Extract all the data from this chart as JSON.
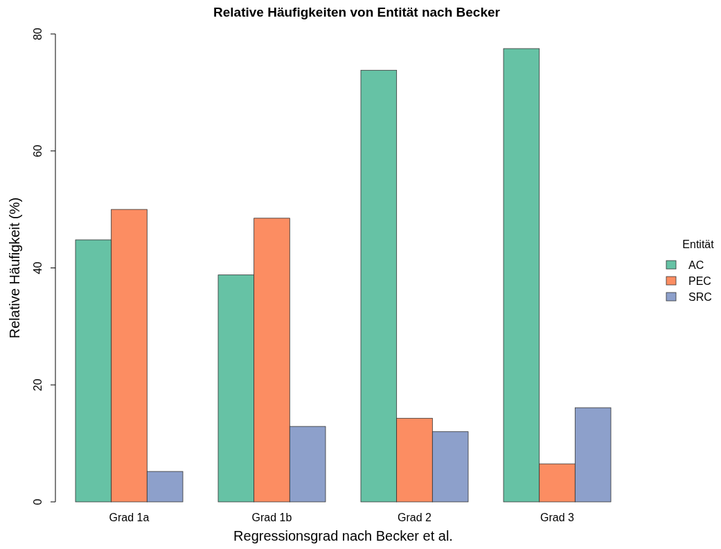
{
  "chart_data": {
    "type": "bar",
    "title": "Relative Häufigkeiten von Entität nach Becker",
    "xlabel": "Regressionsgrad nach Becker et al.",
    "ylabel": "Relative Häufigkeit (%)",
    "legend_title": "Entität",
    "categories": [
      "Grad 1a",
      "Grad 1b",
      "Grad 2",
      "Grad 3"
    ],
    "series": [
      {
        "name": "AC",
        "color": "#66c2a5",
        "values": [
          44.8,
          38.8,
          73.8,
          77.5
        ]
      },
      {
        "name": "PEC",
        "color": "#fc8d62",
        "values": [
          50.0,
          48.5,
          14.3,
          6.5
        ]
      },
      {
        "name": "SRC",
        "color": "#8da0cb",
        "values": [
          5.2,
          12.9,
          12.0,
          16.1
        ]
      }
    ],
    "ylim": [
      0,
      80
    ],
    "yticks": [
      0,
      20,
      40,
      60,
      80
    ],
    "grid": false,
    "legend": "right"
  }
}
